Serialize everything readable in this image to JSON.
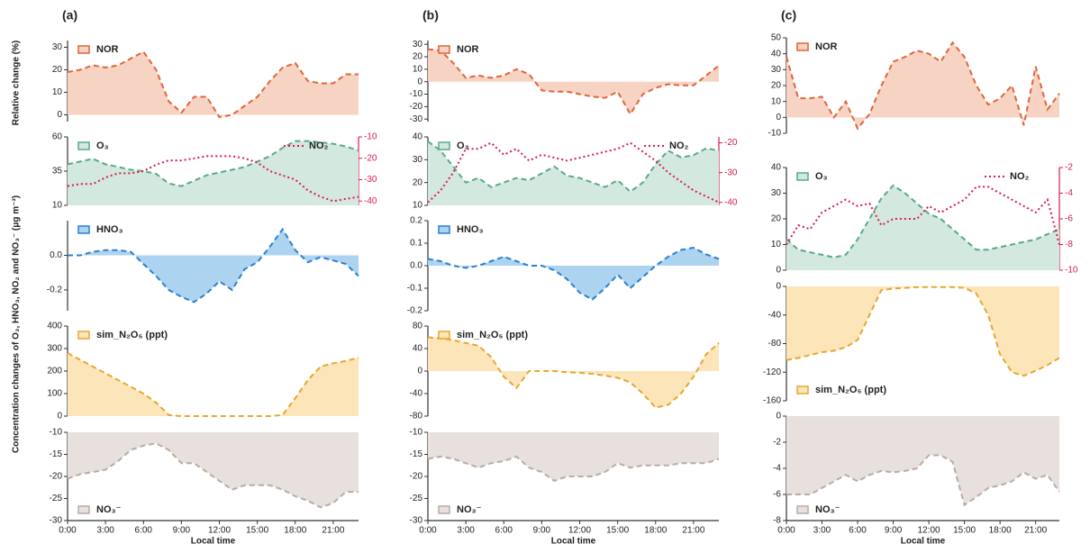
{
  "ylabels": [
    "Relative change (%)",
    "Concentration changes of O₃, HNO₃, NO₂ and NO₃⁻ (μg m⁻³)"
  ],
  "chart_data": [
    {
      "type": "area",
      "panel": "(a)",
      "xlabel": "Local time",
      "xlim": [
        0,
        23
      ],
      "x": [
        0,
        1,
        2,
        3,
        4,
        5,
        6,
        7,
        8,
        9,
        10,
        11,
        12,
        13,
        14,
        15,
        16,
        17,
        18,
        19,
        20,
        21,
        22,
        23
      ],
      "xticks": [
        {
          "value": 0,
          "label": "0:00"
        },
        {
          "value": 3,
          "label": "3:00"
        },
        {
          "value": 6,
          "label": "6:00"
        },
        {
          "value": 9,
          "label": "9:00"
        },
        {
          "value": 12,
          "label": "12:00"
        },
        {
          "value": 15,
          "label": "15:00"
        },
        {
          "value": 18,
          "label": "18:00"
        },
        {
          "value": 21,
          "label": "21:00"
        }
      ],
      "subplots": [
        {
          "ylim": [
            -3,
            33
          ],
          "yticks": [
            0,
            10,
            20,
            30
          ],
          "series": [
            {
              "name": "NOR",
              "color": "#e0653a",
              "fill": "#f7d3c4",
              "dash": "dashed",
              "legend": "upper left",
              "values": [
                19,
                20,
                22,
                21,
                22,
                25,
                28,
                20,
                6,
                1,
                8,
                8,
                -1,
                0,
                4,
                8,
                15,
                21,
                23,
                15,
                14,
                14,
                18,
                18
              ]
            }
          ]
        },
        {
          "ylim": [
            10,
            60
          ],
          "yticks": [
            10,
            35,
            60
          ],
          "y2lim": [
            -42,
            -10
          ],
          "y2ticks": [
            -40,
            -30,
            -20,
            -10
          ],
          "series": [
            {
              "name": "O₃",
              "color": "#5aa88a",
              "fill": "#d3e9df",
              "dash": "dashed",
              "legend": "upper left",
              "values": [
                40,
                42,
                44,
                40,
                38,
                36,
                35,
                33,
                26,
                24,
                28,
                32,
                34,
                36,
                38,
                42,
                46,
                52,
                57,
                57,
                56,
                55,
                53,
                50
              ]
            },
            {
              "name": "NO₂",
              "color": "#d81b4a",
              "dash": "dotted",
              "axis": "y2",
              "legend": "upper right",
              "values": [
                -33,
                -32,
                -32,
                -29,
                -27,
                -27,
                -26,
                -23,
                -21,
                -21,
                -20,
                -19,
                -19,
                -19,
                -20,
                -22,
                -26,
                -28,
                -30,
                -35,
                -38,
                -40,
                -39,
                -38
              ]
            }
          ]
        },
        {
          "ylim": [
            -0.32,
            0.2
          ],
          "yticks": [
            -0.2,
            {
              "value": 0,
              "label": "0.0"
            }
          ],
          "series": [
            {
              "name": "HNO₃",
              "color": "#2b7fcf",
              "fill": "#acd4f1",
              "dash": "dashed",
              "legend": "upper left",
              "values": [
                0,
                0,
                0.02,
                0.03,
                0.03,
                0.02,
                -0.05,
                -0.12,
                -0.2,
                -0.24,
                -0.27,
                -0.22,
                -0.15,
                -0.2,
                -0.08,
                -0.04,
                0.05,
                0.15,
                0.03,
                -0.04,
                -0.01,
                -0.03,
                -0.05,
                -0.12
              ]
            }
          ]
        },
        {
          "ylim": [
            0,
            400
          ],
          "yticks": [
            0,
            100,
            200,
            300,
            400
          ],
          "series": [
            {
              "name": "sim_N₂O₅ (ppt)",
              "color": "#e8a630",
              "fill": "#fbe5b9",
              "dash": "dashed",
              "legend": "upper left",
              "values": [
                280,
                250,
                220,
                190,
                160,
                130,
                100,
                60,
                5,
                0,
                0,
                0,
                0,
                0,
                0,
                0,
                0,
                5,
                80,
                160,
                220,
                235,
                245,
                260
              ]
            }
          ]
        },
        {
          "ylim": [
            -30,
            -10
          ],
          "yticks": [
            -30,
            -25,
            -20,
            -15,
            -10
          ],
          "series": [
            {
              "name": "NO₃⁻",
              "color": "#b8aca5",
              "fill": "#e7e0dc",
              "dash": "dashed",
              "legend": "lower left",
              "values": [
                -20.5,
                -19.5,
                -19,
                -18.5,
                -16.5,
                -14,
                -13,
                -12.5,
                -14,
                -17,
                -17,
                -19,
                -21,
                -23,
                -22,
                -22,
                -22,
                -23,
                -24.5,
                -25.5,
                -27,
                -26,
                -23.5,
                -23.5
              ]
            }
          ]
        }
      ]
    },
    {
      "type": "area",
      "panel": "(b)",
      "xlabel": "Local time",
      "xlim": [
        0,
        23
      ],
      "x": [
        0,
        1,
        2,
        3,
        4,
        5,
        6,
        7,
        8,
        9,
        10,
        11,
        12,
        13,
        14,
        15,
        16,
        17,
        18,
        19,
        20,
        21,
        22,
        23
      ],
      "xticks": [
        {
          "value": 0,
          "label": "0:00"
        },
        {
          "value": 3,
          "label": "3:00"
        },
        {
          "value": 6,
          "label": "6:00"
        },
        {
          "value": 9,
          "label": "9:00"
        },
        {
          "value": 12,
          "label": "12:00"
        },
        {
          "value": 15,
          "label": "15:00"
        },
        {
          "value": 18,
          "label": "18:00"
        },
        {
          "value": 21,
          "label": "21:00"
        }
      ],
      "subplots": [
        {
          "ylim": [
            -32,
            33
          ],
          "yticks": [
            -30,
            -20,
            -10,
            0,
            10,
            20,
            30
          ],
          "series": [
            {
              "name": "NOR",
              "color": "#e0653a",
              "fill": "#f7d3c4",
              "dash": "dashed",
              "legend": "upper left",
              "values": [
                26,
                25,
                15,
                3,
                5,
                3,
                5,
                10,
                6,
                -7,
                -8,
                -8,
                -10,
                -12,
                -13,
                -8,
                -26,
                -10,
                -5,
                -2,
                -3,
                -3,
                5,
                13
              ]
            }
          ]
        },
        {
          "ylim": [
            10,
            40
          ],
          "yticks": [
            10,
            20,
            30,
            40
          ],
          "y2lim": [
            -41,
            -18
          ],
          "y2ticks": [
            -40,
            -30,
            -20
          ],
          "series": [
            {
              "name": "O₃",
              "color": "#5aa88a",
              "fill": "#d3e9df",
              "dash": "dashed",
              "legend": "upper left",
              "values": [
                38,
                34,
                27,
                20,
                22,
                18,
                20,
                22,
                21,
                24,
                27,
                23,
                22,
                20,
                18,
                21,
                16,
                20,
                28,
                34,
                31,
                32,
                35,
                34
              ]
            },
            {
              "name": "NO₂",
              "color": "#d81b4a",
              "dash": "dotted",
              "axis": "y2",
              "legend": "upper right",
              "values": [
                -40,
                -36,
                -30,
                -22,
                -22,
                -20,
                -24,
                -22,
                -26,
                -24,
                -25,
                -26,
                -25,
                -24,
                -23,
                -22,
                -20,
                -23,
                -26,
                -30,
                -33,
                -36,
                -38,
                -40
              ]
            }
          ]
        },
        {
          "ylim": [
            -0.2,
            0.2
          ],
          "yticks": [
            -0.2,
            -0.1,
            {
              "value": 0,
              "label": "0.0"
            },
            0.1,
            0.2
          ],
          "series": [
            {
              "name": "HNO₃",
              "color": "#2b7fcf",
              "fill": "#acd4f1",
              "dash": "dashed",
              "legend": "upper left",
              "values": [
                0.03,
                0.02,
                0,
                -0.01,
                0,
                0.02,
                0.04,
                0.02,
                0,
                0,
                -0.02,
                -0.06,
                -0.12,
                -0.15,
                -0.1,
                -0.04,
                -0.1,
                -0.05,
                0,
                0.04,
                0.07,
                0.08,
                0.05,
                0.03
              ]
            }
          ]
        },
        {
          "ylim": [
            -80,
            80
          ],
          "yticks": [
            -80,
            -40,
            0,
            40,
            80
          ],
          "series": [
            {
              "name": "sim_N₂O₅ (ppt)",
              "color": "#e8a630",
              "fill": "#fbe5b9",
              "dash": "dashed",
              "legend": "upper left",
              "values": [
                60,
                58,
                55,
                50,
                45,
                25,
                -10,
                -30,
                0,
                0,
                0,
                -2,
                -3,
                -5,
                -8,
                -12,
                -20,
                -40,
                -65,
                -60,
                -40,
                -10,
                30,
                50
              ]
            }
          ]
        },
        {
          "ylim": [
            -30,
            -10
          ],
          "yticks": [
            -30,
            -25,
            -20,
            -15,
            -10
          ],
          "series": [
            {
              "name": "NO₃⁻",
              "color": "#b8aca5",
              "fill": "#e7e0dc",
              "dash": "dashed",
              "legend": "lower left",
              "values": [
                -16,
                -15.5,
                -16,
                -17,
                -18,
                -17,
                -16.5,
                -15.5,
                -18,
                -19,
                -21,
                -20,
                -20,
                -20,
                -19,
                -17,
                -18,
                -17.5,
                -17.5,
                -17.5,
                -17,
                -17,
                -17,
                -16
              ]
            }
          ]
        }
      ]
    },
    {
      "type": "area",
      "panel": "(c)",
      "xlabel": "Local time",
      "xlim": [
        0,
        23
      ],
      "x": [
        0,
        1,
        2,
        3,
        4,
        5,
        6,
        7,
        8,
        9,
        10,
        11,
        12,
        13,
        14,
        15,
        16,
        17,
        18,
        19,
        20,
        21,
        22,
        23
      ],
      "xticks": [
        {
          "value": 0,
          "label": "0:00"
        },
        {
          "value": 3,
          "label": "3:00"
        },
        {
          "value": 6,
          "label": "6:00"
        },
        {
          "value": 9,
          "label": "9:00"
        },
        {
          "value": 12,
          "label": "12:00"
        },
        {
          "value": 15,
          "label": "15:00"
        },
        {
          "value": 18,
          "label": "18:00"
        },
        {
          "value": 21,
          "label": "21:00"
        }
      ],
      "subplots": [
        {
          "ylim": [
            -10,
            50
          ],
          "yticks": [
            -10,
            0,
            10,
            20,
            30,
            40,
            50
          ],
          "series": [
            {
              "name": "NOR",
              "color": "#e0653a",
              "fill": "#f7d3c4",
              "dash": "dashed",
              "legend": "upper left",
              "values": [
                38,
                12,
                12,
                13,
                0,
                10,
                -7,
                2,
                20,
                35,
                38,
                42,
                40,
                35,
                47,
                38,
                20,
                8,
                12,
                20,
                -5,
                32,
                5,
                15
              ]
            }
          ]
        },
        {
          "ylim": [
            0,
            40
          ],
          "yticks": [
            0,
            10,
            20,
            30,
            40
          ],
          "y2lim": [
            -10,
            -2
          ],
          "y2ticks": [
            -10,
            -8,
            -6,
            -4,
            -2
          ],
          "series": [
            {
              "name": "O₃",
              "color": "#5aa88a",
              "fill": "#d3e9df",
              "dash": "dashed",
              "legend": "upper left",
              "values": [
                12,
                8,
                7,
                6,
                5,
                6,
                12,
                20,
                28,
                33,
                30,
                26,
                22,
                20,
                16,
                12,
                8,
                8,
                9,
                10,
                11,
                12,
                14,
                16
              ]
            },
            {
              "name": "NO₂",
              "color": "#d81b4a",
              "dash": "dotted",
              "axis": "y2",
              "legend": "upper right",
              "values": [
                -8,
                -6.5,
                -6.8,
                -5.5,
                -5,
                -4.5,
                -5,
                -4.8,
                -6.5,
                -6,
                -6,
                -6,
                -5,
                -5.5,
                -5,
                -4.5,
                -3.5,
                -3.5,
                -4,
                -4.5,
                -5,
                -5.5,
                -4.5,
                -8
              ]
            }
          ]
        },
        {
          "ylim": [
            -160,
            0
          ],
          "yticks": [
            -160,
            -120,
            -80,
            -40,
            0
          ],
          "series": [
            {
              "name": "sim_N₂O₅ (ppt)",
              "color": "#e8a630",
              "fill": "#fbe5b9",
              "dash": "dashed",
              "legend": "lower left",
              "values": [
                -103,
                -100,
                -96,
                -92,
                -90,
                -85,
                -75,
                -40,
                -5,
                -3,
                -2,
                -1,
                -1,
                -1,
                -1,
                -2,
                -10,
                -40,
                -95,
                -120,
                -125,
                -118,
                -110,
                -100
              ]
            }
          ]
        },
        {
          "ylim": [
            -8,
            0
          ],
          "yticks": [
            -8,
            -6,
            -4,
            -2,
            0
          ],
          "series": [
            {
              "name": "NO₃⁻",
              "color": "#b8aca5",
              "fill": "#e7e0dc",
              "dash": "dashed",
              "legend": "lower left",
              "values": [
                -6,
                -6,
                -6,
                -5.5,
                -5,
                -4.5,
                -5,
                -4.5,
                -4.2,
                -4.3,
                -4.2,
                -4,
                -3,
                -3,
                -3.5,
                -6.8,
                -6.2,
                -5.5,
                -5.3,
                -5,
                -4.3,
                -4.8,
                -4.5,
                -5.8
              ]
            }
          ]
        }
      ]
    }
  ]
}
